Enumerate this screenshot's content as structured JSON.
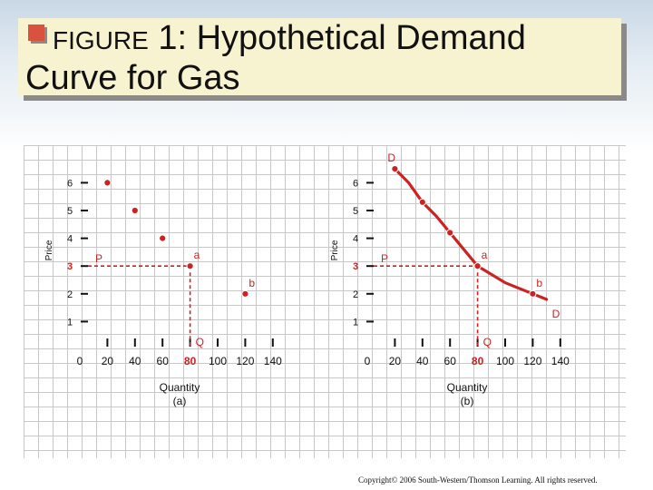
{
  "title": {
    "figure_label": "FIGURE",
    "number": "1:",
    "line1_rest": "Hypothetical Demand",
    "line2": "Curve for Gas"
  },
  "copyright": "Copyright© 2006 South-Western/Thomson Learning. All rights reserved.",
  "colors": {
    "accent": "#cc2222",
    "title_bg": "#f7f2cf",
    "bullet": "#d9523f"
  },
  "chart_data": [
    {
      "type": "scatter",
      "panel_label": "(a)",
      "xlabel": "Quantity",
      "ylabel": "Price",
      "xlim": [
        0,
        140
      ],
      "ylim": [
        0,
        6
      ],
      "x_ticks": [
        "0",
        "20",
        "40",
        "60",
        "80",
        "100",
        "120",
        "140"
      ],
      "y_ticks": [
        "1",
        "2",
        "3",
        "4",
        "5",
        "6"
      ],
      "points": [
        {
          "x": 20,
          "y": 6
        },
        {
          "x": 40,
          "y": 5
        },
        {
          "x": 60,
          "y": 4
        },
        {
          "x": 80,
          "y": 3,
          "label": "a"
        },
        {
          "x": 120,
          "y": 2,
          "label": "b"
        }
      ],
      "reference": {
        "price_label": "P",
        "price": 3,
        "quantity_label": "Q",
        "quantity": 80
      }
    },
    {
      "type": "line",
      "panel_label": "(b)",
      "xlabel": "Quantity",
      "ylabel": "Price",
      "xlim": [
        0,
        140
      ],
      "ylim": [
        0,
        6
      ],
      "x_ticks": [
        "0",
        "20",
        "40",
        "60",
        "80",
        "100",
        "120",
        "140"
      ],
      "y_ticks": [
        "1",
        "2",
        "3",
        "4",
        "5",
        "6"
      ],
      "curve_label": "D",
      "curve": [
        {
          "x": 20,
          "y": 6.5
        },
        {
          "x": 30,
          "y": 6
        },
        {
          "x": 40,
          "y": 5.3
        },
        {
          "x": 50,
          "y": 4.8
        },
        {
          "x": 60,
          "y": 4.2
        },
        {
          "x": 70,
          "y": 3.6
        },
        {
          "x": 80,
          "y": 3
        },
        {
          "x": 90,
          "y": 2.7
        },
        {
          "x": 100,
          "y": 2.4
        },
        {
          "x": 110,
          "y": 2.2
        },
        {
          "x": 120,
          "y": 2
        },
        {
          "x": 130,
          "y": 1.8
        }
      ],
      "points": [
        {
          "x": 20,
          "y": 6.5
        },
        {
          "x": 40,
          "y": 5.3
        },
        {
          "x": 60,
          "y": 4.2
        },
        {
          "x": 80,
          "y": 3,
          "label": "a"
        },
        {
          "x": 120,
          "y": 2,
          "label": "b"
        }
      ],
      "reference": {
        "price_label": "P",
        "price": 3,
        "quantity_label": "Q",
        "quantity": 80
      }
    }
  ]
}
